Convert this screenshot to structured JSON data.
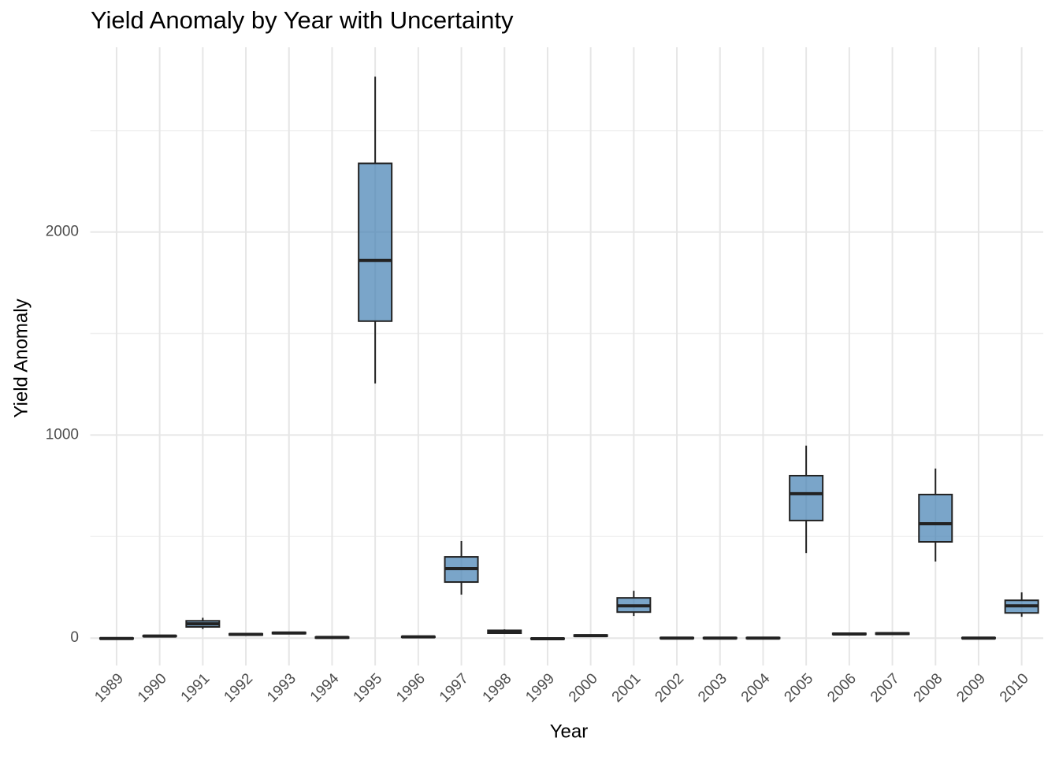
{
  "chart_data": {
    "type": "box",
    "title": "Yield Anomaly by Year with Uncertainty",
    "x_label": "Year",
    "y_label": "Yield Anomaly",
    "categories": [
      "1989",
      "1990",
      "1991",
      "1992",
      "1993",
      "1994",
      "1995",
      "1996",
      "1997",
      "1998",
      "1999",
      "2000",
      "2001",
      "2002",
      "2003",
      "2004",
      "2005",
      "2006",
      "2007",
      "2008",
      "2009",
      "2010"
    ],
    "min": [
      -6,
      6,
      45,
      12,
      20,
      -2,
      1254,
      2,
      214,
      20,
      -7,
      7,
      109,
      -4,
      -4,
      -4,
      419,
      15,
      16,
      377,
      -4,
      105
    ],
    "q1": [
      -4,
      8,
      55,
      15,
      22,
      0,
      1561,
      4,
      276,
      24,
      -5,
      9,
      128,
      -2,
      -2,
      -2,
      579,
      18,
      19,
      474,
      -2,
      124
    ],
    "median": [
      -2,
      10,
      70,
      18,
      25,
      3,
      1860,
      6,
      342,
      31,
      -3,
      12,
      159,
      0,
      0,
      0,
      711,
      20,
      22,
      563,
      0,
      159
    ],
    "q3": [
      0,
      12,
      85,
      21,
      28,
      5,
      2338,
      8,
      400,
      38,
      -1,
      15,
      198,
      2,
      2,
      2,
      800,
      23,
      25,
      707,
      2,
      186
    ],
    "max": [
      2,
      14,
      100,
      24,
      31,
      7,
      2765,
      10,
      478,
      43,
      1,
      17,
      233,
      4,
      4,
      4,
      948,
      26,
      28,
      835,
      4,
      225
    ],
    "color": "#4682b4",
    "ylim": [
      -135,
      2910
    ],
    "yticks": [
      0,
      1000,
      2000
    ],
    "yminor": [
      500,
      1500,
      2500
    ],
    "grid": true
  }
}
